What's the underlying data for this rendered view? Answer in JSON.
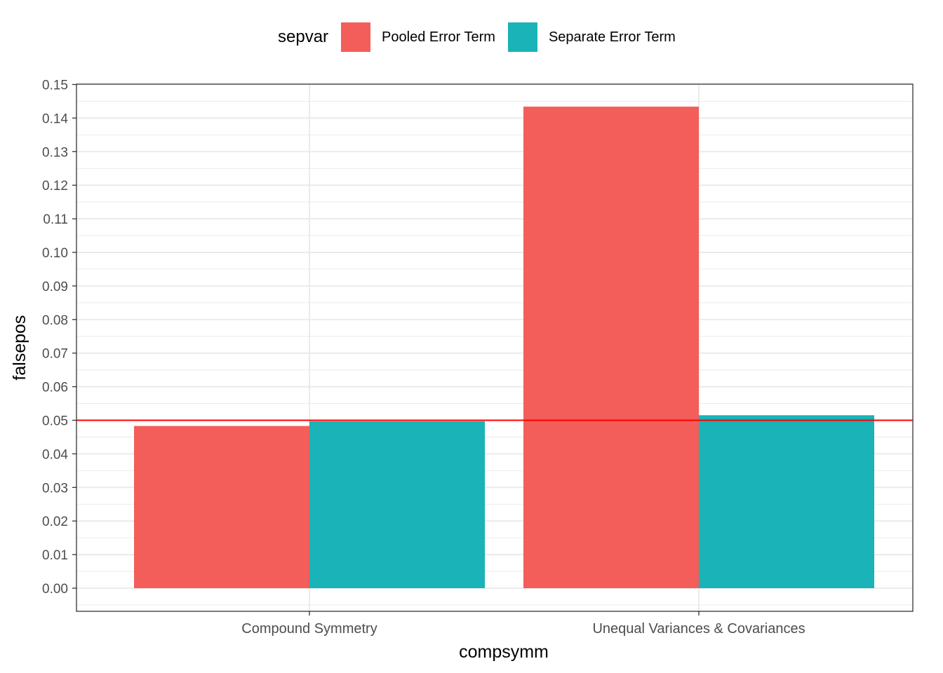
{
  "legend": {
    "title": "sepvar",
    "items": [
      {
        "label": "Pooled Error Term",
        "color": "#f35e5a"
      },
      {
        "label": "Separate Error Term",
        "color": "#19b3b8"
      }
    ]
  },
  "chart_data": {
    "type": "bar",
    "xlabel": "compsymm",
    "ylabel": "falsepos",
    "categories": [
      "Compound Symmetry",
      "Unequal Variances & Covariances"
    ],
    "series": [
      {
        "name": "Pooled Error Term",
        "color": "#f35e5a",
        "values": [
          0.0483,
          0.1434
        ]
      },
      {
        "name": "Separate Error Term",
        "color": "#19b3b8",
        "values": [
          0.0497,
          0.0515
        ]
      }
    ],
    "ylim": [
      -0.005,
      0.15
    ],
    "yticks": [
      "0.00",
      "0.01",
      "0.02",
      "0.03",
      "0.04",
      "0.05",
      "0.06",
      "0.07",
      "0.08",
      "0.09",
      "0.10",
      "0.11",
      "0.12",
      "0.13",
      "0.14",
      "0.15"
    ],
    "reference_line": {
      "y": 0.05,
      "color": "#ff0000"
    },
    "grid": true,
    "legend_position": "top"
  }
}
